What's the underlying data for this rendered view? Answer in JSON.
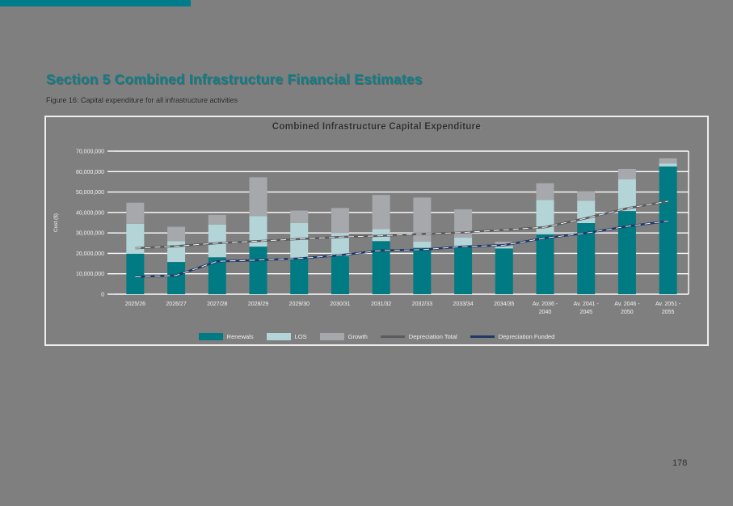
{
  "page": {
    "accent_color": "#007b8a",
    "title_color": "#0c7f88",
    "background_color": "#7f7f7f",
    "section_title": "Section 5 Combined Infrastructure Financial Estimates",
    "figure_caption": "Figure 16: Capital expenditure for all infrastructure activities",
    "page_number": "178"
  },
  "chart_data": {
    "type": "bar",
    "subtype": "stacked-bar-with-lines",
    "title": "Combined Infrastructure Capital Expenditure",
    "xlabel": "",
    "ylabel": "Cost ($)",
    "ylim": [
      0,
      70000000
    ],
    "ytick_step": 10000000,
    "ytick_labels": [
      "0",
      "10,000,000",
      "20,000,000",
      "30,000,000",
      "40,000,000",
      "50,000,000",
      "60,000,000",
      "70,000,000"
    ],
    "grid": true,
    "gridline_color": "#ffffff",
    "tick_text_color": "#f2f2f2",
    "legend_position": "bottom",
    "categories": [
      "2025/26",
      "2026/27",
      "2027/28",
      "2028/29",
      "2029/30",
      "2030/31",
      "2031/32",
      "2032/33",
      "2033/34",
      "2034/35",
      "Av. 2036 - 2040",
      "Av. 2041 - 2045",
      "Av. 2046 - 2050",
      "Av. 2051 - 2055"
    ],
    "series": [
      {
        "name": "Renewals",
        "type": "bar",
        "color": "#007b83",
        "values": [
          19800000,
          15800000,
          18100000,
          23300000,
          17400000,
          18700000,
          26000000,
          22700000,
          23100000,
          22400000,
          29300000,
          34800000,
          40700000,
          62500000
        ]
      },
      {
        "name": "LOS",
        "type": "bar",
        "color": "#b3d5d8",
        "values": [
          14700000,
          10200000,
          16000000,
          14900000,
          17400000,
          11200000,
          5900000,
          3000000,
          4600000,
          1000000,
          16800000,
          10900000,
          15600000,
          1500000
        ]
      },
      {
        "name": "Growth",
        "type": "bar",
        "color": "#a6a8ab",
        "values": [
          10300000,
          7000000,
          4700000,
          19000000,
          6100000,
          12300000,
          16700000,
          21600000,
          13800000,
          2300000,
          8200000,
          4600000,
          5000000,
          2500000
        ]
      },
      {
        "name": "Depreciation Total",
        "type": "line",
        "color": "#595b5e",
        "values": [
          22500000,
          23500000,
          25000000,
          26000000,
          27000000,
          28000000,
          28600000,
          29500000,
          30200000,
          31500000,
          32800000,
          37200000,
          42000000,
          45500000
        ]
      },
      {
        "name": "Depreciation Funded",
        "type": "line",
        "color": "#1f3864",
        "values": [
          8500000,
          9200000,
          16100000,
          16700000,
          17500000,
          19100000,
          21400000,
          21800000,
          23300000,
          24000000,
          27500000,
          29900000,
          33200000,
          35800000
        ]
      }
    ]
  }
}
